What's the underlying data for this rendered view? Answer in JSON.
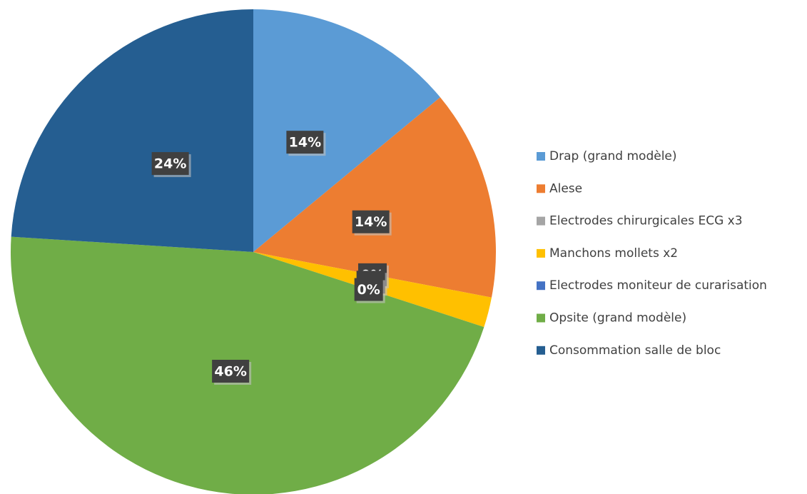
{
  "chart_data": {
    "type": "pie",
    "categories": [
      "Drap (grand modèle)",
      "Alese",
      "Electrodes chirurgicales ECG x3",
      "Manchons mollets x2",
      "Electrodes moniteur de curarisation",
      "Opsite (grand modèle)",
      "Consommation salle de bloc"
    ],
    "values": [
      14,
      14,
      0,
      2,
      0,
      46,
      24
    ],
    "value_labels": [
      "14%",
      "14%",
      "0%",
      null,
      "0%",
      "46%",
      "24%"
    ],
    "colors": [
      "#5b9bd5",
      "#ed7d31",
      "#a5a5a5",
      "#ffc000",
      "#4472c4",
      "#70ad47",
      "#255e91"
    ],
    "legend": "right"
  }
}
